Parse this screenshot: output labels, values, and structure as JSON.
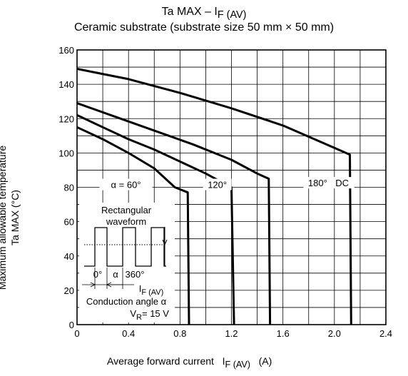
{
  "chart_data": {
    "type": "line",
    "title": "Ta MAX – I",
    "title_sub": "F (AV)",
    "subtitle": "Ceramic substrate (substrate size 50 mm × 50 mm)",
    "xlabel": "Average forward current",
    "xlabel_sym": "I",
    "xlabel_sub": "F (AV)",
    "xlabel_unit": "(A)",
    "ylabel_line1": "Maximum allowable temperature",
    "ylabel_line2": "Ta MAX    (°C)",
    "xlim": [
      0,
      2.4
    ],
    "ylim": [
      0,
      160
    ],
    "x_ticks": [
      "0",
      "0.4",
      "0.8",
      "1.2",
      "1.6",
      "2.0",
      "2.4"
    ],
    "y_ticks": [
      "0",
      "20",
      "40",
      "60",
      "80",
      "100",
      "120",
      "140",
      "160"
    ],
    "x_tick_values": [
      0,
      0.4,
      0.8,
      1.2,
      1.6,
      2.0,
      2.4
    ],
    "y_tick_values": [
      0,
      20,
      40,
      60,
      80,
      100,
      120,
      140,
      160
    ],
    "grid": true,
    "series": [
      {
        "name": "α = 60°",
        "points": [
          [
            0,
            115
          ],
          [
            0.2,
            108
          ],
          [
            0.4,
            100
          ],
          [
            0.6,
            91
          ],
          [
            0.76,
            80
          ],
          [
            0.86,
            77
          ],
          [
            0.87,
            0
          ]
        ]
      },
      {
        "name": "120°",
        "points": [
          [
            0,
            122
          ],
          [
            0.2,
            115
          ],
          [
            0.4,
            108
          ],
          [
            0.6,
            102
          ],
          [
            0.8,
            95
          ],
          [
            1.0,
            88
          ],
          [
            1.1,
            84
          ],
          [
            1.2,
            80
          ],
          [
            1.22,
            0
          ]
        ]
      },
      {
        "name": "180°",
        "points": [
          [
            0,
            129
          ],
          [
            0.3,
            121
          ],
          [
            0.6,
            113
          ],
          [
            0.9,
            105
          ],
          [
            1.2,
            96
          ],
          [
            1.4,
            88
          ],
          [
            1.49,
            85
          ],
          [
            1.5,
            0
          ]
        ]
      },
      {
        "name": "DC",
        "points": [
          [
            0,
            149
          ],
          [
            0.4,
            143
          ],
          [
            0.8,
            135
          ],
          [
            1.2,
            126
          ],
          [
            1.6,
            116
          ],
          [
            2.0,
            103
          ],
          [
            2.12,
            99
          ],
          [
            2.13,
            0
          ]
        ]
      }
    ],
    "inset": {
      "title_line1": "Rectangular",
      "title_line2": "waveform",
      "label_zero": "0°",
      "label_alpha": "α",
      "label_360": "360°",
      "current_sym": "I",
      "current_sub": "F (AV)",
      "conduction": "Conduction angle α",
      "vr_sym": "V",
      "vr_sub": "R",
      "vr_value": " = 15 V"
    }
  }
}
